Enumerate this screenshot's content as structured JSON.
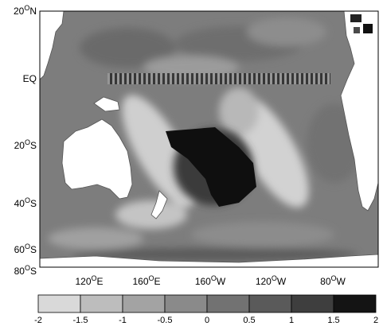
{
  "map": {
    "y_ticks": [
      {
        "deg": "20",
        "sup": "O",
        "hem": "N"
      },
      {
        "deg": "EQ",
        "sup": "",
        "hem": ""
      },
      {
        "deg": "20",
        "sup": "O",
        "hem": "S"
      },
      {
        "deg": "40",
        "sup": "O",
        "hem": "S"
      },
      {
        "deg": "60",
        "sup": "O",
        "hem": "S"
      },
      {
        "deg": "80",
        "sup": "O",
        "hem": "S"
      }
    ],
    "x_ticks": [
      {
        "deg": "120",
        "sup": "O",
        "hem": "E"
      },
      {
        "deg": "160",
        "sup": "O",
        "hem": "E"
      },
      {
        "deg": "160",
        "sup": "O",
        "hem": "W"
      },
      {
        "deg": "120",
        "sup": "O",
        "hem": "W"
      },
      {
        "deg": "80",
        "sup": "O",
        "hem": "W"
      }
    ],
    "colors": {
      "land": "#ffffff",
      "ocean_base": "#7d7d7d",
      "frame": "#000000"
    }
  },
  "colorbar": {
    "labels": [
      "-2",
      "-1.5",
      "-1",
      "-0.5",
      "0",
      "0.5",
      "1",
      "1.5",
      "2"
    ],
    "colors": [
      "#d9d9d9",
      "#bdbdbd",
      "#a3a3a3",
      "#8a8a8a",
      "#727272",
      "#5a5a5a",
      "#3e3e3e",
      "#141414"
    ]
  }
}
